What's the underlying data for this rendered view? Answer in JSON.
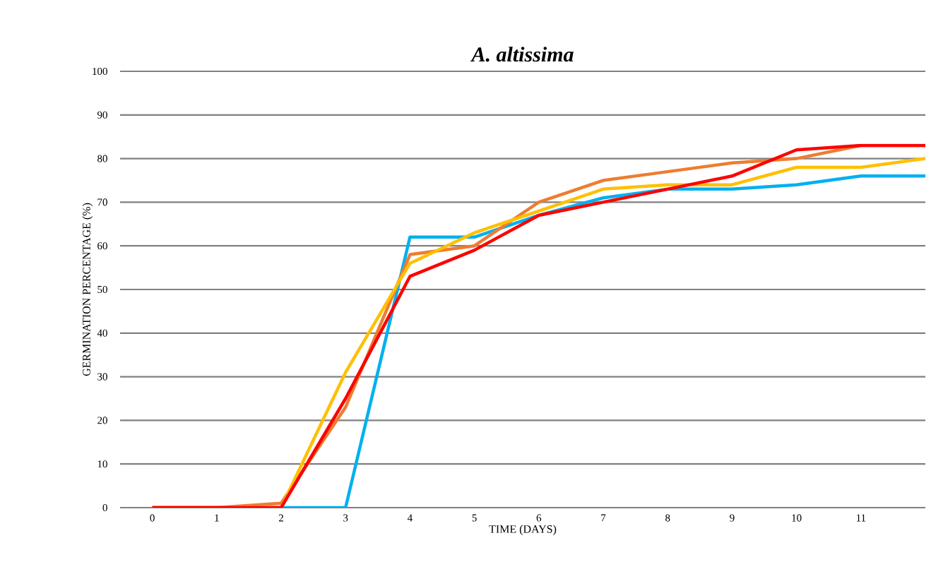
{
  "chart_data": {
    "type": "line",
    "title": "A. altissima",
    "xlabel": "TIME (DAYS)",
    "ylabel": "GERMINATION PERCENTAGE (%)",
    "x": [
      0,
      1,
      2,
      3,
      4,
      5,
      6,
      7,
      8,
      9,
      10,
      11,
      12
    ],
    "series": [
      {
        "color": "#00b0f0",
        "values": [
          0,
          0,
          0,
          0,
          62,
          62,
          67,
          71,
          73,
          73,
          74,
          76,
          76
        ]
      },
      {
        "color": "#ed7d31",
        "values": [
          0,
          0,
          1,
          23,
          58,
          60,
          70,
          75,
          77,
          79,
          80,
          83,
          83
        ]
      },
      {
        "color": "#ffc000",
        "values": [
          0,
          0,
          0,
          31,
          56,
          63,
          68,
          73,
          74,
          74,
          78,
          78,
          80
        ]
      },
      {
        "color": "#ff0000",
        "values": [
          0,
          0,
          0,
          25,
          53,
          59,
          67,
          70,
          73,
          76,
          82,
          83,
          83
        ]
      }
    ],
    "xlim": [
      -0.5,
      12
    ],
    "xticks": [
      0,
      1,
      2,
      3,
      4,
      5,
      6,
      7,
      8,
      9,
      10,
      11
    ],
    "ylim": [
      0,
      100
    ],
    "yticks": [
      0,
      10,
      20,
      30,
      40,
      50,
      60,
      70,
      80,
      90,
      100
    ],
    "grid": "y",
    "marker": "none",
    "line_style": "solid"
  }
}
